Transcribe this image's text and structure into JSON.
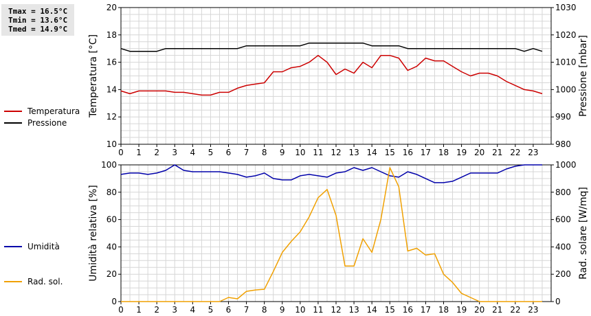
{
  "stats": {
    "tmax": "Tmax = 16.5°C",
    "tmin": "Tmin = 13.6°C",
    "tmed": "Tmed = 14.9°C"
  },
  "legend_top": [
    {
      "label": "Temperatura",
      "color": "#cc0000"
    },
    {
      "label": "Pressione",
      "color": "#000000"
    }
  ],
  "legend_bottom": [
    {
      "label": "Umidità",
      "color": "#0000aa"
    },
    {
      "label": "Rad. sol.",
      "color": "#f0a000"
    }
  ],
  "chart_data": [
    {
      "type": "line",
      "ylabel": "Temperatura [°C]",
      "y2label": "Pressione [mbar]",
      "ylim": [
        10,
        20
      ],
      "y2lim": [
        980,
        1030
      ],
      "yticks": [
        10,
        12,
        14,
        16,
        18,
        20
      ],
      "y2ticks": [
        980,
        990,
        1000,
        1010,
        1020,
        1030
      ],
      "xlim": [
        0,
        24
      ],
      "xticks": [
        0,
        1,
        2,
        3,
        4,
        5,
        6,
        7,
        8,
        9,
        10,
        11,
        12,
        13,
        14,
        15,
        16,
        17,
        18,
        19,
        20,
        21,
        22,
        23
      ],
      "grid": true,
      "series": [
        {
          "name": "Temperatura",
          "axis": "left",
          "color": "#cc0000",
          "x": [
            0,
            0.5,
            1,
            1.5,
            2,
            2.5,
            3,
            3.5,
            4,
            4.5,
            5,
            5.5,
            6,
            6.5,
            7,
            7.5,
            8,
            8.5,
            9,
            9.5,
            10,
            10.5,
            11,
            11.5,
            12,
            12.5,
            13,
            13.5,
            14,
            14.5,
            15,
            15.5,
            16,
            16.5,
            17,
            17.5,
            18,
            18.5,
            19,
            19.5,
            20,
            20.5,
            21,
            21.5,
            22,
            22.5,
            23,
            23.5
          ],
          "values": [
            13.9,
            13.7,
            13.9,
            13.9,
            13.9,
            13.9,
            13.8,
            13.8,
            13.7,
            13.6,
            13.6,
            13.8,
            13.8,
            14.1,
            14.3,
            14.4,
            14.5,
            15.3,
            15.3,
            15.6,
            15.7,
            16.0,
            16.5,
            16.0,
            15.1,
            15.5,
            15.2,
            16.0,
            15.6,
            16.5,
            16.5,
            16.3,
            15.4,
            15.7,
            16.3,
            16.1,
            16.1,
            15.7,
            15.3,
            15.0,
            15.2,
            15.2,
            15.0,
            14.6,
            14.3,
            14.0,
            13.9,
            13.7
          ]
        },
        {
          "name": "Pressione",
          "axis": "right",
          "color": "#000000",
          "x": [
            0,
            0.5,
            1,
            1.5,
            2,
            2.5,
            3,
            3.5,
            4,
            4.5,
            5,
            5.5,
            6,
            6.5,
            7,
            7.5,
            8,
            8.5,
            9,
            9.5,
            10,
            10.5,
            11,
            11.5,
            12,
            12.5,
            13,
            13.5,
            14,
            14.5,
            15,
            15.5,
            16,
            16.5,
            17,
            17.5,
            18,
            18.5,
            19,
            19.5,
            20,
            20.5,
            21,
            21.5,
            22,
            22.5,
            23,
            23.5
          ],
          "values": [
            1015,
            1014,
            1014,
            1014,
            1014,
            1015,
            1015,
            1015,
            1015,
            1015,
            1015,
            1015,
            1015,
            1015,
            1016,
            1016,
            1016,
            1016,
            1016,
            1016,
            1016,
            1017,
            1017,
            1017,
            1017,
            1017,
            1017,
            1017,
            1016,
            1016,
            1016,
            1016,
            1015,
            1015,
            1015,
            1015,
            1015,
            1015,
            1015,
            1015,
            1015,
            1015,
            1015,
            1015,
            1015,
            1014,
            1015,
            1014
          ]
        }
      ]
    },
    {
      "type": "line",
      "ylabel": "Umidità relativa [%]",
      "y2label": "Rad. solare [W/mq]",
      "ylim": [
        0,
        100
      ],
      "y2lim": [
        0,
        1000
      ],
      "yticks": [
        0,
        20,
        40,
        60,
        80,
        100
      ],
      "y2ticks": [
        0,
        200,
        400,
        600,
        800,
        1000
      ],
      "xlim": [
        0,
        24
      ],
      "xticks": [
        0,
        1,
        2,
        3,
        4,
        5,
        6,
        7,
        8,
        9,
        10,
        11,
        12,
        13,
        14,
        15,
        16,
        17,
        18,
        19,
        20,
        21,
        22,
        23
      ],
      "grid": true,
      "series": [
        {
          "name": "Umidità",
          "axis": "left",
          "color": "#0000aa",
          "x": [
            0,
            0.5,
            1,
            1.5,
            2,
            2.5,
            3,
            3.5,
            4,
            4.5,
            5,
            5.5,
            6,
            6.5,
            7,
            7.5,
            8,
            8.5,
            9,
            9.5,
            10,
            10.5,
            11,
            11.5,
            12,
            12.5,
            13,
            13.5,
            14,
            14.5,
            15,
            15.5,
            16,
            16.5,
            17,
            17.5,
            18,
            18.5,
            19,
            19.5,
            20,
            20.5,
            21,
            21.5,
            22,
            22.5,
            23,
            23.5
          ],
          "values": [
            93,
            94,
            94,
            93,
            94,
            96,
            100,
            96,
            95,
            95,
            95,
            95,
            94,
            93,
            91,
            92,
            94,
            90,
            89,
            89,
            92,
            93,
            92,
            91,
            94,
            95,
            98,
            96,
            98,
            95,
            92,
            91,
            95,
            93,
            90,
            87,
            87,
            88,
            91,
            94,
            94,
            94,
            94,
            97,
            99,
            100,
            100,
            100
          ]
        },
        {
          "name": "Rad. sol.",
          "axis": "right",
          "color": "#f0a000",
          "x": [
            0,
            0.5,
            1,
            1.5,
            2,
            2.5,
            3,
            3.5,
            4,
            4.5,
            5,
            5.5,
            6,
            6.5,
            7,
            7.5,
            8,
            8.5,
            9,
            9.5,
            10,
            10.5,
            11,
            11.5,
            12,
            12.5,
            13,
            13.5,
            14,
            14.5,
            15,
            15.5,
            16,
            16.5,
            17,
            17.5,
            18,
            18.5,
            19,
            19.5,
            20,
            20.5,
            21,
            21.5,
            22,
            22.5,
            23,
            23.5
          ],
          "values": [
            0,
            0,
            0,
            0,
            0,
            0,
            0,
            0,
            0,
            0,
            0,
            0,
            30,
            20,
            75,
            85,
            90,
            220,
            360,
            440,
            510,
            620,
            760,
            820,
            630,
            260,
            260,
            460,
            360,
            600,
            980,
            840,
            370,
            390,
            340,
            350,
            200,
            140,
            60,
            30,
            0,
            0,
            0,
            0,
            0,
            0,
            0,
            0
          ]
        }
      ]
    }
  ]
}
